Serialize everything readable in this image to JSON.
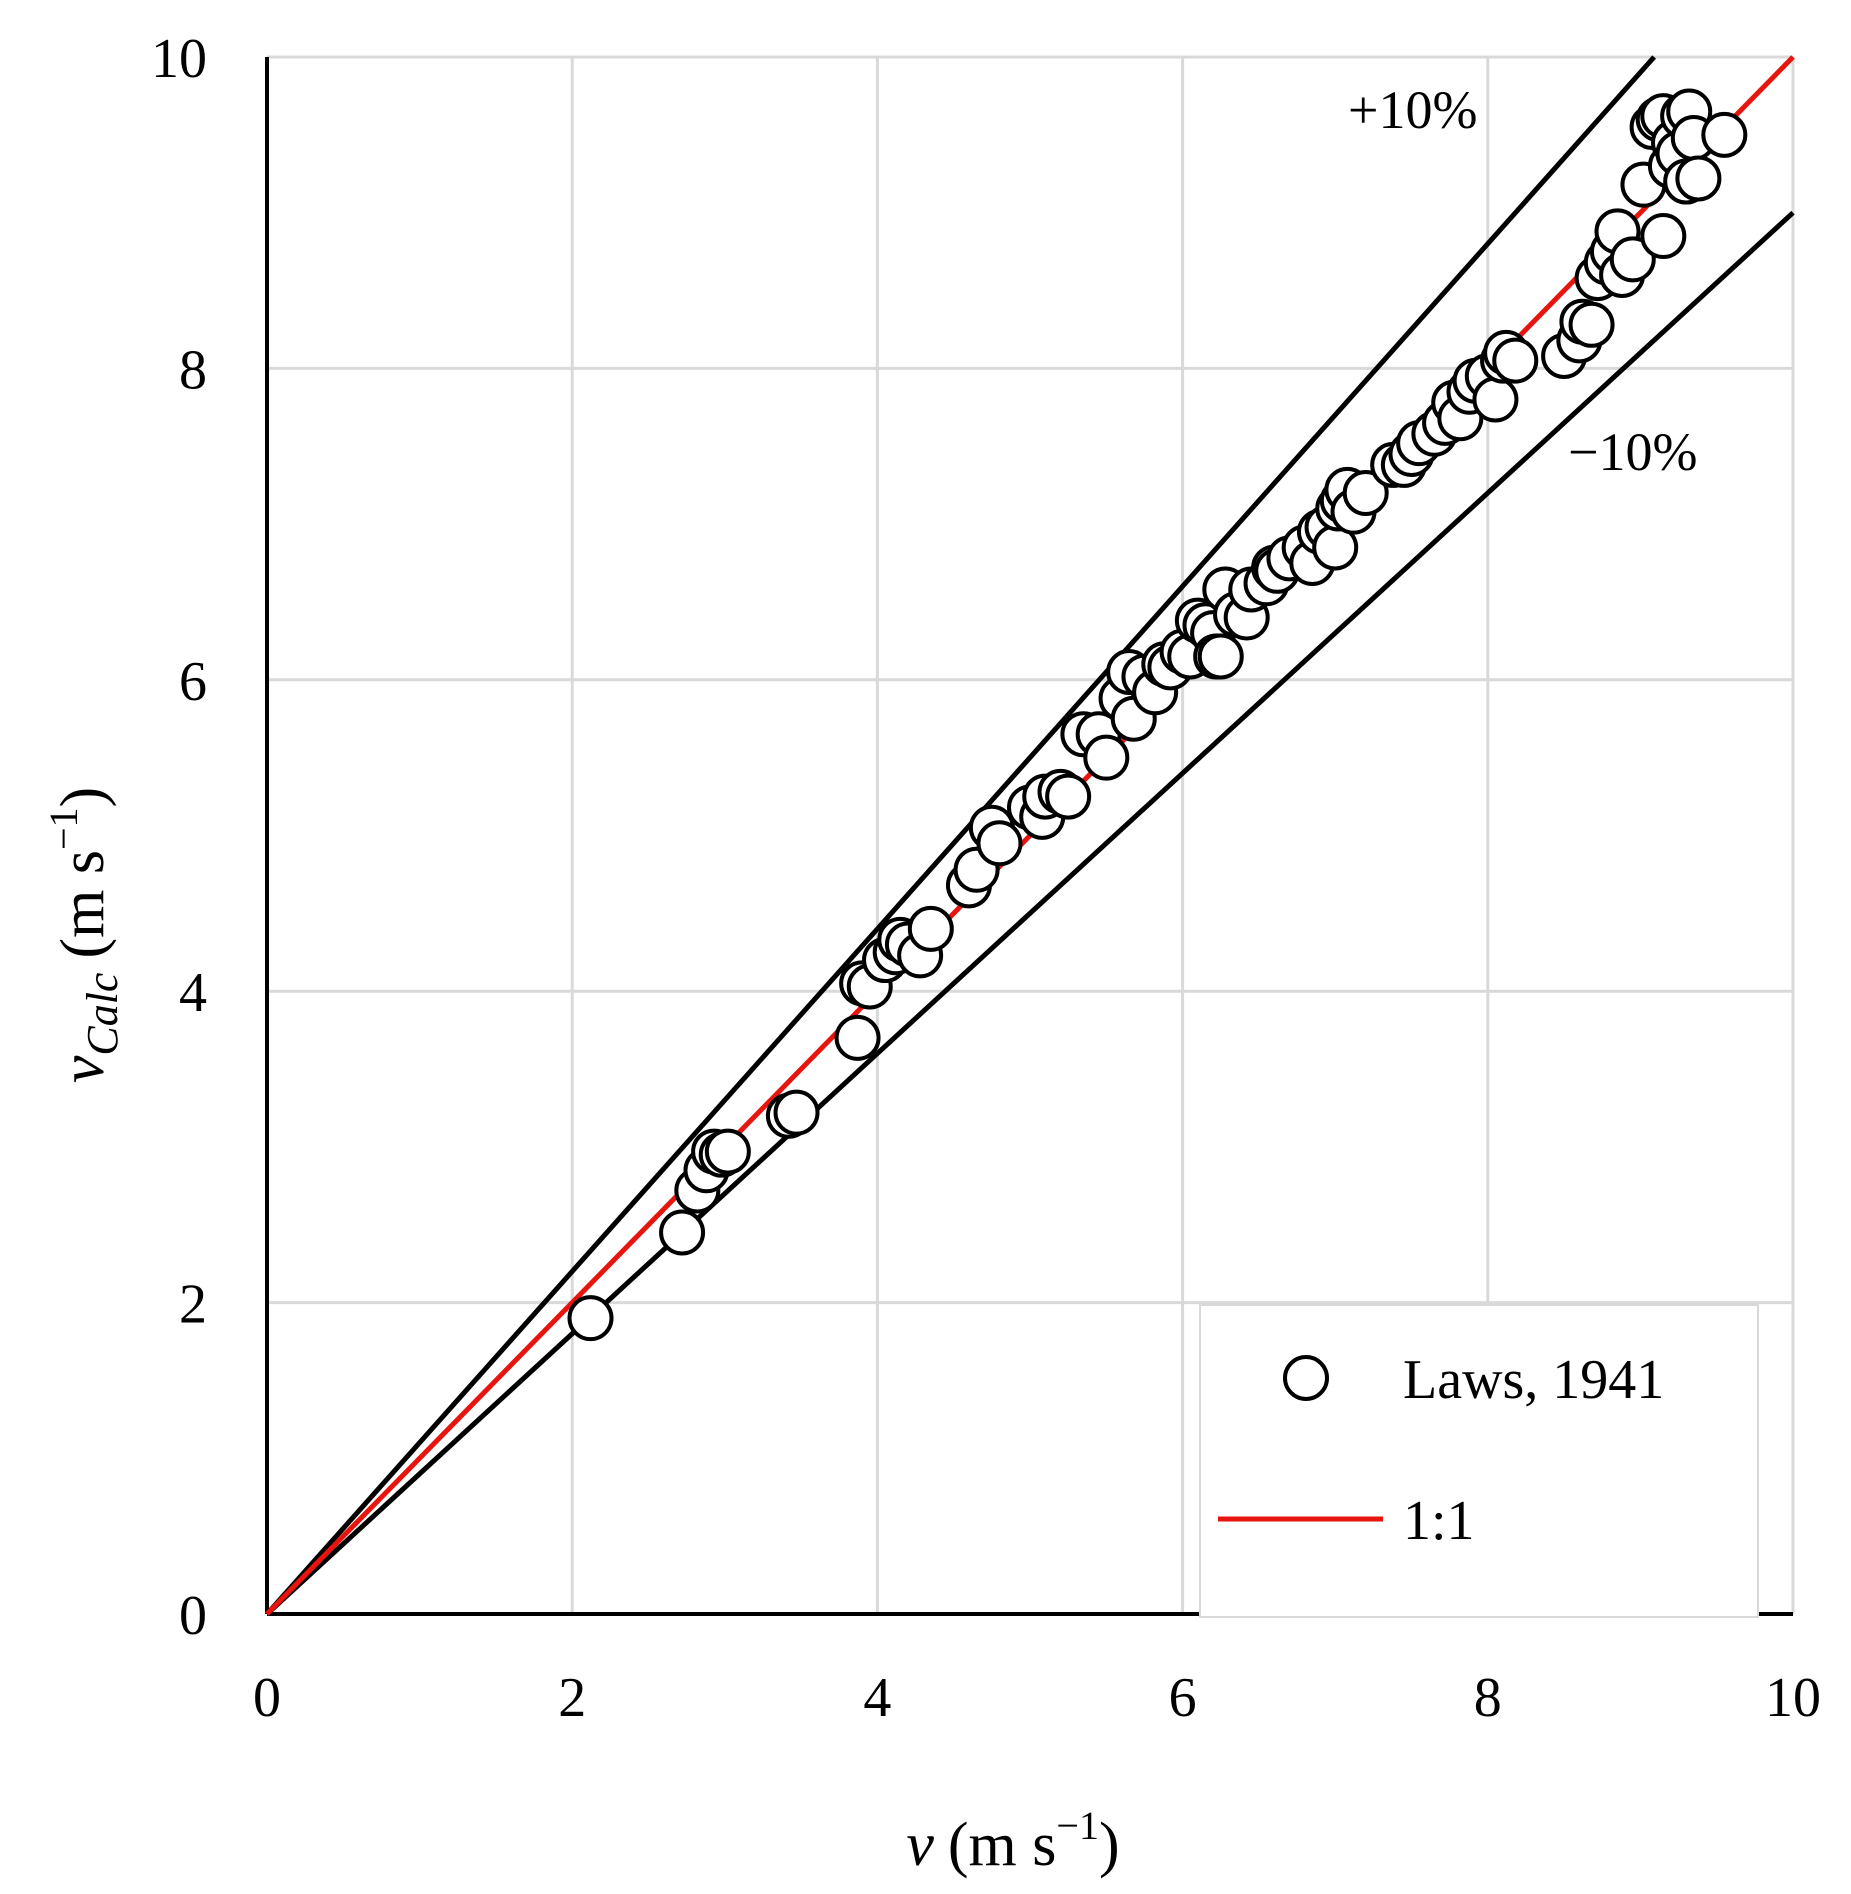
{
  "chart_data": {
    "type": "scatter",
    "xlabel": {
      "var": "v",
      "unit_open": "(m s",
      "exp": "−1",
      "unit_close": ")"
    },
    "ylabel": {
      "var": "v",
      "sub": "Calc",
      "unit_open": "(m s",
      "exp": "−1",
      "unit_close": ")"
    },
    "xlim": [
      0,
      10
    ],
    "ylim": [
      0,
      10
    ],
    "xticks": [
      0,
      2,
      4,
      6,
      8,
      10
    ],
    "yticks": [
      0,
      2,
      4,
      6,
      8,
      10
    ],
    "grid": true,
    "legend_position": "bottom-right",
    "annotations": {
      "upper": "+10%",
      "lower": "−10%"
    },
    "series": [
      {
        "name": "Laws, 1941",
        "kind": "scatter",
        "marker": "open-circle",
        "points": [
          [
            2.12,
            1.9
          ],
          [
            2.72,
            2.45
          ],
          [
            2.82,
            2.72
          ],
          [
            2.88,
            2.85
          ],
          [
            2.93,
            2.97
          ],
          [
            2.98,
            2.95
          ],
          [
            3.02,
            2.97
          ],
          [
            3.42,
            3.2
          ],
          [
            3.47,
            3.22
          ],
          [
            3.87,
            3.7
          ],
          [
            3.9,
            4.05
          ],
          [
            3.95,
            4.03
          ],
          [
            4.05,
            4.2
          ],
          [
            4.12,
            4.25
          ],
          [
            4.15,
            4.33
          ],
          [
            4.2,
            4.3
          ],
          [
            4.28,
            4.23
          ],
          [
            4.35,
            4.4
          ],
          [
            4.6,
            4.68
          ],
          [
            4.65,
            4.78
          ],
          [
            4.75,
            5.05
          ],
          [
            4.8,
            4.95
          ],
          [
            5.0,
            5.18
          ],
          [
            5.08,
            5.12
          ],
          [
            5.1,
            5.25
          ],
          [
            5.2,
            5.28
          ],
          [
            5.25,
            5.25
          ],
          [
            5.35,
            5.65
          ],
          [
            5.45,
            5.65
          ],
          [
            5.5,
            5.5
          ],
          [
            5.6,
            5.88
          ],
          [
            5.65,
            6.05
          ],
          [
            5.68,
            5.75
          ],
          [
            5.75,
            6.02
          ],
          [
            5.82,
            5.92
          ],
          [
            5.88,
            6.1
          ],
          [
            5.92,
            6.08
          ],
          [
            6.0,
            6.18
          ],
          [
            6.05,
            6.15
          ],
          [
            6.1,
            6.38
          ],
          [
            6.15,
            6.35
          ],
          [
            6.2,
            6.3
          ],
          [
            6.22,
            6.15
          ],
          [
            6.25,
            6.15
          ],
          [
            6.28,
            6.58
          ],
          [
            6.35,
            6.42
          ],
          [
            6.42,
            6.4
          ],
          [
            6.45,
            6.58
          ],
          [
            6.55,
            6.62
          ],
          [
            6.6,
            6.72
          ],
          [
            6.62,
            6.7
          ],
          [
            6.7,
            6.78
          ],
          [
            6.8,
            6.85
          ],
          [
            6.85,
            6.75
          ],
          [
            6.9,
            6.95
          ],
          [
            6.95,
            6.98
          ],
          [
            7.0,
            6.85
          ],
          [
            7.02,
            7.1
          ],
          [
            7.05,
            7.15
          ],
          [
            7.08,
            7.22
          ],
          [
            7.12,
            7.08
          ],
          [
            7.2,
            7.2
          ],
          [
            7.38,
            7.38
          ],
          [
            7.45,
            7.38
          ],
          [
            7.5,
            7.45
          ],
          [
            7.55,
            7.52
          ],
          [
            7.65,
            7.58
          ],
          [
            7.72,
            7.65
          ],
          [
            7.78,
            7.78
          ],
          [
            7.82,
            7.68
          ],
          [
            7.88,
            7.85
          ],
          [
            7.92,
            7.92
          ],
          [
            8.0,
            7.95
          ],
          [
            8.05,
            7.8
          ],
          [
            8.1,
            8.05
          ],
          [
            8.12,
            8.1
          ],
          [
            8.18,
            8.05
          ],
          [
            8.5,
            8.08
          ],
          [
            8.6,
            8.18
          ],
          [
            8.62,
            8.3
          ],
          [
            8.68,
            8.28
          ],
          [
            8.72,
            8.58
          ],
          [
            8.78,
            8.68
          ],
          [
            8.82,
            8.75
          ],
          [
            8.85,
            8.88
          ],
          [
            8.88,
            8.6
          ],
          [
            8.95,
            8.7
          ],
          [
            9.02,
            9.18
          ],
          [
            9.08,
            9.55
          ],
          [
            9.12,
            9.6
          ],
          [
            9.15,
            9.62
          ],
          [
            9.15,
            8.85
          ],
          [
            9.2,
            9.3
          ],
          [
            9.22,
            9.45
          ],
          [
            9.25,
            9.38
          ],
          [
            9.28,
            9.62
          ],
          [
            9.3,
            9.2
          ],
          [
            9.32,
            9.65
          ],
          [
            9.35,
            9.48
          ],
          [
            9.38,
            9.22
          ],
          [
            9.55,
            9.5
          ]
        ]
      },
      {
        "name": "1:1",
        "kind": "line",
        "color": "#e8140e",
        "points": [
          [
            0,
            0
          ],
          [
            10,
            10
          ]
        ]
      },
      {
        "name": "",
        "kind": "line",
        "color": "#000000",
        "points": [
          [
            0,
            0
          ],
          [
            9.09,
            10
          ]
        ]
      },
      {
        "name": "",
        "kind": "line",
        "color": "#000000",
        "points": [
          [
            0,
            0
          ],
          [
            10,
            9
          ]
        ]
      }
    ]
  }
}
